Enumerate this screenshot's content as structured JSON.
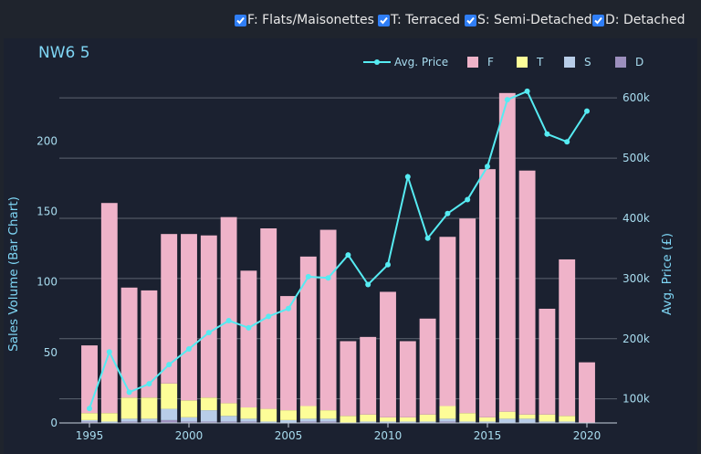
{
  "filters": [
    {
      "label": "F: Flats/Maisonettes",
      "checked": true
    },
    {
      "label": "T: Terraced",
      "checked": true
    },
    {
      "label": "S: Semi-Detached",
      "checked": true
    },
    {
      "label": "D: Detached",
      "checked": true
    }
  ],
  "chart_data": {
    "type": "bar",
    "title": "NW6 5",
    "ylabel": "Sales Volume (Bar Chart)",
    "y2label": "Avg. Price (£)",
    "barmode": "stack",
    "x": [
      1995,
      1996,
      1997,
      1998,
      1999,
      2000,
      2001,
      2002,
      2003,
      2004,
      2005,
      2006,
      2007,
      2008,
      2009,
      2010,
      2011,
      2012,
      2013,
      2014,
      2015,
      2016,
      2017,
      2018,
      2019,
      2020
    ],
    "xticks": [
      1995,
      2000,
      2005,
      2010,
      2015,
      2020
    ],
    "xtick_labels": [
      "1995",
      "2000",
      "2005",
      "2010",
      "2015",
      "2020"
    ],
    "ylim": [
      0,
      230
    ],
    "yticks": [
      0,
      50,
      100,
      150,
      200
    ],
    "ytick_labels": [
      "0",
      "50",
      "100",
      "150",
      "200"
    ],
    "y2lim": [
      60000,
      620000
    ],
    "y2ticks": [
      100000,
      200000,
      300000,
      400000,
      500000,
      600000
    ],
    "y2tick_labels": [
      "100k",
      "200k",
      "300k",
      "400k",
      "500k",
      "600k"
    ],
    "series": [
      {
        "name": "D",
        "color": "#9c8fbd",
        "values": [
          1,
          0,
          1,
          1,
          2,
          1,
          1,
          1,
          1,
          0,
          0,
          1,
          1,
          0,
          0,
          0,
          0,
          0,
          1,
          0,
          0,
          0,
          0,
          0,
          0,
          0
        ]
      },
      {
        "name": "S",
        "color": "#b8cde8",
        "values": [
          1,
          1,
          2,
          2,
          8,
          3,
          8,
          4,
          2,
          1,
          2,
          2,
          2,
          0,
          1,
          1,
          1,
          1,
          2,
          1,
          1,
          3,
          3,
          1,
          1,
          0
        ]
      },
      {
        "name": "T",
        "color": "#fdfd98",
        "values": [
          5,
          6,
          15,
          15,
          18,
          12,
          9,
          9,
          8,
          9,
          7,
          9,
          6,
          5,
          5,
          3,
          3,
          5,
          9,
          6,
          3,
          5,
          3,
          5,
          4,
          0
        ]
      },
      {
        "name": "F",
        "color": "#efb3c9",
        "values": [
          48,
          149,
          78,
          76,
          106,
          118,
          115,
          132,
          97,
          128,
          81,
          106,
          128,
          53,
          55,
          89,
          54,
          68,
          120,
          138,
          176,
          226,
          173,
          75,
          111,
          43
        ]
      }
    ],
    "line": {
      "name": "Avg. Price",
      "color": "#56ebf2",
      "values": [
        84000,
        178000,
        111000,
        125000,
        157000,
        183000,
        210000,
        230000,
        218000,
        237000,
        250000,
        303000,
        301000,
        339000,
        290000,
        323000,
        469000,
        367000,
        408000,
        431000,
        486000,
        597000,
        611000,
        540000,
        527000,
        578000
      ]
    },
    "legend": {
      "position": "top-right",
      "items": [
        "Avg. Price",
        "F",
        "T",
        "S",
        "D"
      ]
    },
    "grid": true
  }
}
